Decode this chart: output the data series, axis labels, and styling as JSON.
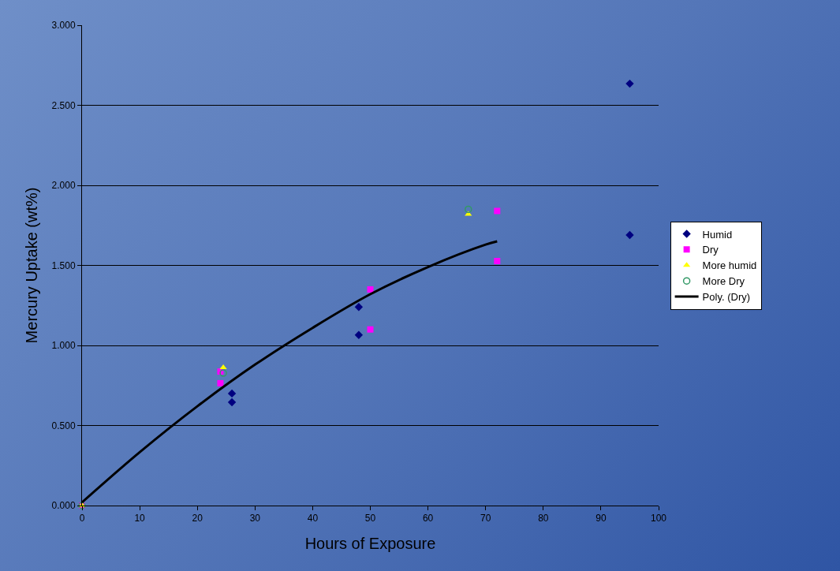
{
  "chart_data": {
    "type": "scatter",
    "xlabel": "Hours of Exposure",
    "ylabel": "Mercury Uptake (wt%)",
    "xlim": [
      0,
      100
    ],
    "xticks": [
      0,
      10,
      20,
      30,
      40,
      50,
      60,
      70,
      80,
      90,
      100
    ],
    "ylim": [
      0,
      3
    ],
    "yticks": [
      {
        "value": 0,
        "label": "0.000"
      },
      {
        "value": 0.5,
        "label": "0.500"
      },
      {
        "value": 1,
        "label": "1.000"
      },
      {
        "value": 1.5,
        "label": "1.500"
      },
      {
        "value": 2,
        "label": "2.000"
      },
      {
        "value": 2.5,
        "label": "2.500"
      },
      {
        "value": 3,
        "label": "3.000"
      }
    ],
    "grid": "y",
    "legend": "right",
    "series": [
      {
        "name": "Humid",
        "color": "#000080",
        "marker": "diamond",
        "x": [
          26,
          26,
          48,
          48,
          95,
          95
        ],
        "values": [
          0.7,
          0.645,
          1.24,
          1.065,
          2.635,
          1.69
        ]
      },
      {
        "name": "Dry",
        "color": "#ff00ff",
        "marker": "square",
        "x": [
          0,
          24,
          24,
          50,
          50,
          72,
          72
        ],
        "values": [
          0,
          0.837,
          0.764,
          1.35,
          1.1,
          1.84,
          1.527
        ]
      },
      {
        "name": "More humid",
        "color": "#ffff00",
        "marker": "triangle",
        "x": [
          0,
          24.5,
          67
        ],
        "values": [
          0,
          0.862,
          1.82
        ]
      },
      {
        "name": "More Dry",
        "color": "#339966",
        "marker": "circle",
        "x": [
          0,
          24.5,
          67
        ],
        "values": [
          0,
          0.827,
          1.85
        ]
      },
      {
        "name": "Poly. (Dry)",
        "type": "line",
        "color": "#000000",
        "marker": "none",
        "line_style": "solid",
        "x": [
          0,
          10,
          20,
          30,
          40,
          50,
          60,
          70,
          72
        ],
        "values": [
          0.02,
          0.333,
          0.62,
          0.88,
          1.11,
          1.32,
          1.49,
          1.63,
          1.65
        ]
      }
    ]
  }
}
